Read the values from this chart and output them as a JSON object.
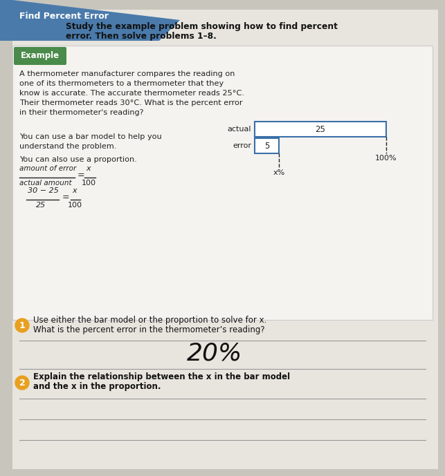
{
  "bg_color": "#c8c5bc",
  "page_bg": "#e8e5de",
  "header_text": "Find Percent Error",
  "intro_line1": "Study the example problem showing how to find percent",
  "intro_line2": "error. Then solve problems 1–8.",
  "example_label": "Example",
  "example_text": [
    "A thermometer manufacturer compares the reading on",
    "one of its thermometers to a thermometer that they",
    "know is accurate. The accurate thermometer reads 25°C.",
    "Their thermometer reads 30°C. What is the percent error",
    "in their thermometer's reading?"
  ],
  "bar_label1": "You can use a bar model to help you",
  "bar_label2": "understand the problem.",
  "proportion_label": "You can also use a proportion.",
  "bar_actual_label": "actual",
  "bar_error_label": "error",
  "bar_actual_value": "25",
  "bar_error_value": "5",
  "bar_x_label": "x%",
  "bar_100_label": "100%",
  "bar_box_color": "#3a6fa8",
  "fraction_line1_num": "amount of error",
  "fraction_line1_den": "actual amount",
  "fraction_x": "x",
  "fraction_100": "100",
  "fraction_line2_num": "30 − 25",
  "fraction_line2_den": "25",
  "fraction_eq2_rhs_num": "x",
  "fraction_eq2_rhs_den": "100",
  "q1_bg_color": "#e8a020",
  "q1_text1": "Use either the bar model or the proportion to solve for x.",
  "q1_text2": "What is the percent error in the thermometer’s reading?",
  "q1_answer": "20%",
  "q1_answer_font": 26,
  "q2_text1": "Explain the relationship between the x in the bar model",
  "q2_text2": "and the x in the proportion.",
  "line_color": "#999999",
  "text_color": "#222222",
  "dark_text": "#111111",
  "header_blue": "#4a7aaa",
  "example_green": "#4a8a4a",
  "white": "#ffffff",
  "box_bg": "#f5f3ef"
}
